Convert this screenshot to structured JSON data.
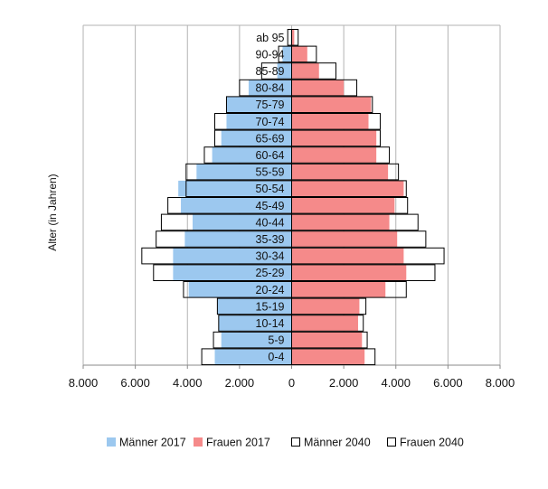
{
  "chart_data": {
    "type": "bar",
    "orientation": "horizontal",
    "layout": "population-pyramid",
    "ylabel": "Alter (in Jahren)",
    "xlabel": "",
    "xlim": [
      -8000,
      8000
    ],
    "x_ticks": [
      -8000,
      -6000,
      -4000,
      -2000,
      0,
      2000,
      4000,
      6000,
      8000
    ],
    "x_tick_labels": [
      "8.000",
      "6.000",
      "4.000",
      "2.000",
      "0",
      "2.000",
      "4.000",
      "6.000",
      "8.000"
    ],
    "grid": "vertical",
    "legend_position": "bottom",
    "categories": [
      "0-4",
      "5-9",
      "10-14",
      "15-19",
      "20-24",
      "25-29",
      "30-34",
      "35-39",
      "40-44",
      "45-49",
      "50-54",
      "55-59",
      "60-64",
      "65-69",
      "70-74",
      "75-79",
      "80-84",
      "85-89",
      "90-94",
      "ab 95"
    ],
    "series": [
      {
        "name": "Männer 2017",
        "side": "left",
        "style": "filled",
        "color": "#9cc8ef",
        "values": [
          2950,
          2700,
          2800,
          2850,
          3950,
          4550,
          4550,
          4100,
          3800,
          4250,
          4350,
          3650,
          3050,
          2700,
          2500,
          2500,
          1650,
          550,
          350,
          30
        ]
      },
      {
        "name": "Frauen 2017",
        "side": "right",
        "style": "filled",
        "color": "#f58a8a",
        "values": [
          2800,
          2700,
          2550,
          2600,
          3600,
          4400,
          4300,
          4050,
          3750,
          3950,
          4300,
          3700,
          3250,
          3250,
          2950,
          3050,
          2000,
          1050,
          600,
          100
        ]
      },
      {
        "name": "Männer 2040",
        "side": "left",
        "style": "outline",
        "color": "#000000",
        "values": [
          3450,
          3000,
          2800,
          2850,
          4150,
          5300,
          5750,
          5200,
          5000,
          4750,
          4050,
          4050,
          3350,
          2950,
          2950,
          2500,
          2000,
          1150,
          500,
          150
        ]
      },
      {
        "name": "Frauen 2040",
        "side": "right",
        "style": "outline",
        "color": "#000000",
        "values": [
          3200,
          2900,
          2750,
          2850,
          4400,
          5500,
          5850,
          5150,
          4850,
          4450,
          4400,
          4100,
          3750,
          3400,
          3400,
          3100,
          2500,
          1700,
          950,
          250
        ]
      }
    ]
  }
}
